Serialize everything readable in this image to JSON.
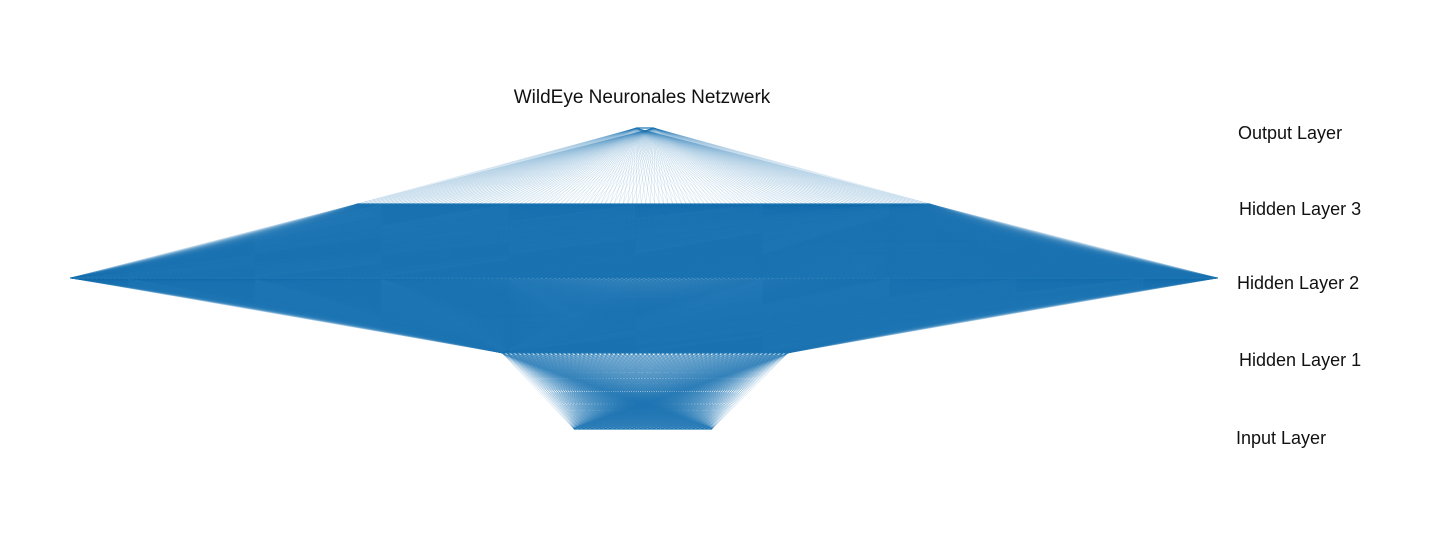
{
  "diagram": {
    "title": "WildEye Neuronales Netzwerk",
    "line_color": "#1f77b4",
    "background": "#ffffff",
    "layers": [
      {
        "key": "output",
        "label": "Output Layer",
        "neurons": 2
      },
      {
        "key": "h3",
        "label": "Hidden Layer 3",
        "neurons": 128
      },
      {
        "key": "h2",
        "label": "Hidden Layer 2",
        "neurons": 256
      },
      {
        "key": "h1",
        "label": "Hidden Layer 1",
        "neurons": 64
      },
      {
        "key": "input",
        "label": "Input Layer",
        "neurons": 32
      }
    ]
  }
}
